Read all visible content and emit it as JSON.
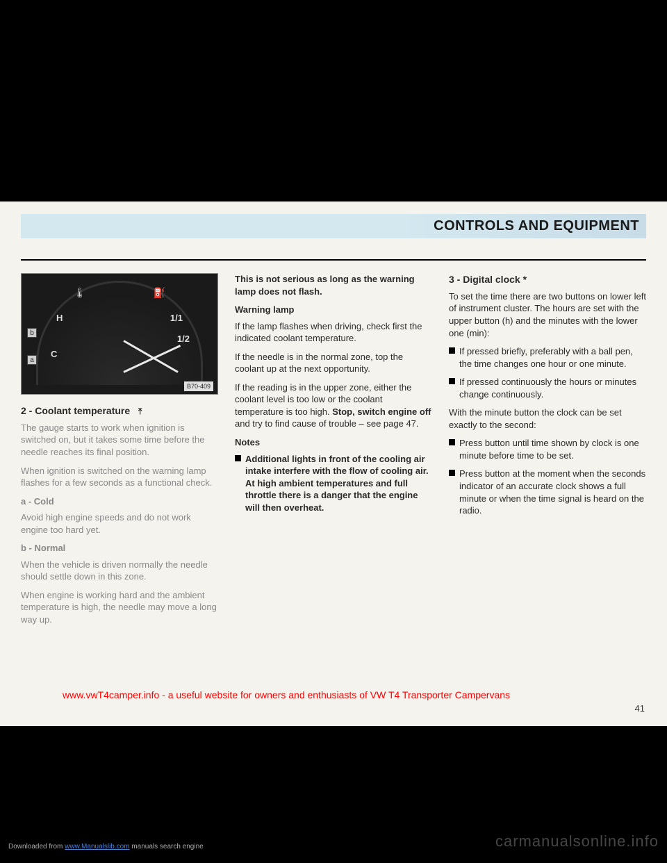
{
  "header": {
    "title": "CONTROLS AND EQUIPMENT"
  },
  "gauge": {
    "ref": "B70-409",
    "labels": {
      "h": "H",
      "c": "C",
      "full": "1/1",
      "half": "1/2"
    },
    "icons": {
      "temp": "🌡",
      "fuel": "⛽"
    },
    "markers": {
      "a": "a",
      "b": "b"
    }
  },
  "col1": {
    "heading": "2 - Coolant temperature",
    "icon": "⤒",
    "p1": "The gauge starts to work when ignition is switched on, but it takes some time before the needle reaches its final position.",
    "p2": "When ignition is switched on the warning lamp flashes for a few seconds as a functional check.",
    "sub_a": "a - Cold",
    "p3": "Avoid high engine speeds and do not work engine too hard yet.",
    "sub_b": "b - Normal",
    "p4": "When the vehicle is driven normally the needle should settle down in this zone.",
    "p5": "When engine is working hard and the ambient temperature is high, the needle may move a long way up."
  },
  "col2": {
    "p1": "This is not serious as long as the warning lamp does not flash.",
    "sub1": "Warning lamp",
    "p2": "If the lamp flashes when driving, check first the indicated coolant temperature.",
    "p3": "If the needle is in the normal zone, top the coolant up at the next opportunity.",
    "p4a": "If the reading is in the upper zone, either the coolant level is too low or the coolant temperature is too high. ",
    "p4b": "Stop, switch engine off",
    "p4c": " and try to find cause of trouble – see page 47.",
    "sub2": "Notes",
    "bullet1": "Additional lights in front of the cooling air intake interfere with the flow of cooling air. At high ambient temperatures and full throttle there is a danger that the engine will then overheat."
  },
  "col3": {
    "heading": "3 - Digital clock *",
    "p1": "To set the time there are two buttons on lower left of instrument cluster. The hours are set with the upper button (h) and the minutes with the lower one (min):",
    "bullet1": "If pressed briefly, preferably with a ball pen, the time changes one hour or one minute.",
    "bullet2": "If pressed continuously the hours or minutes change continuously.",
    "p2": "With the minute button the clock can be set exactly to the second:",
    "bullet3": "Press button until time shown by clock is one minute before time to be set.",
    "bullet4": "Press button at the moment when the seconds indicator of an accurate clock shows a full minute or when the time signal is heard on the radio."
  },
  "overlay": "www.vwT4camper.info - a useful website for owners and enthusiasts of VW T4 Transporter Campervans",
  "page_number": "41",
  "footer": {
    "pre": "Downloaded from ",
    "link": "www.Manualslib.com",
    "post": " manuals search engine"
  },
  "watermark": "carmanualsonline.info"
}
